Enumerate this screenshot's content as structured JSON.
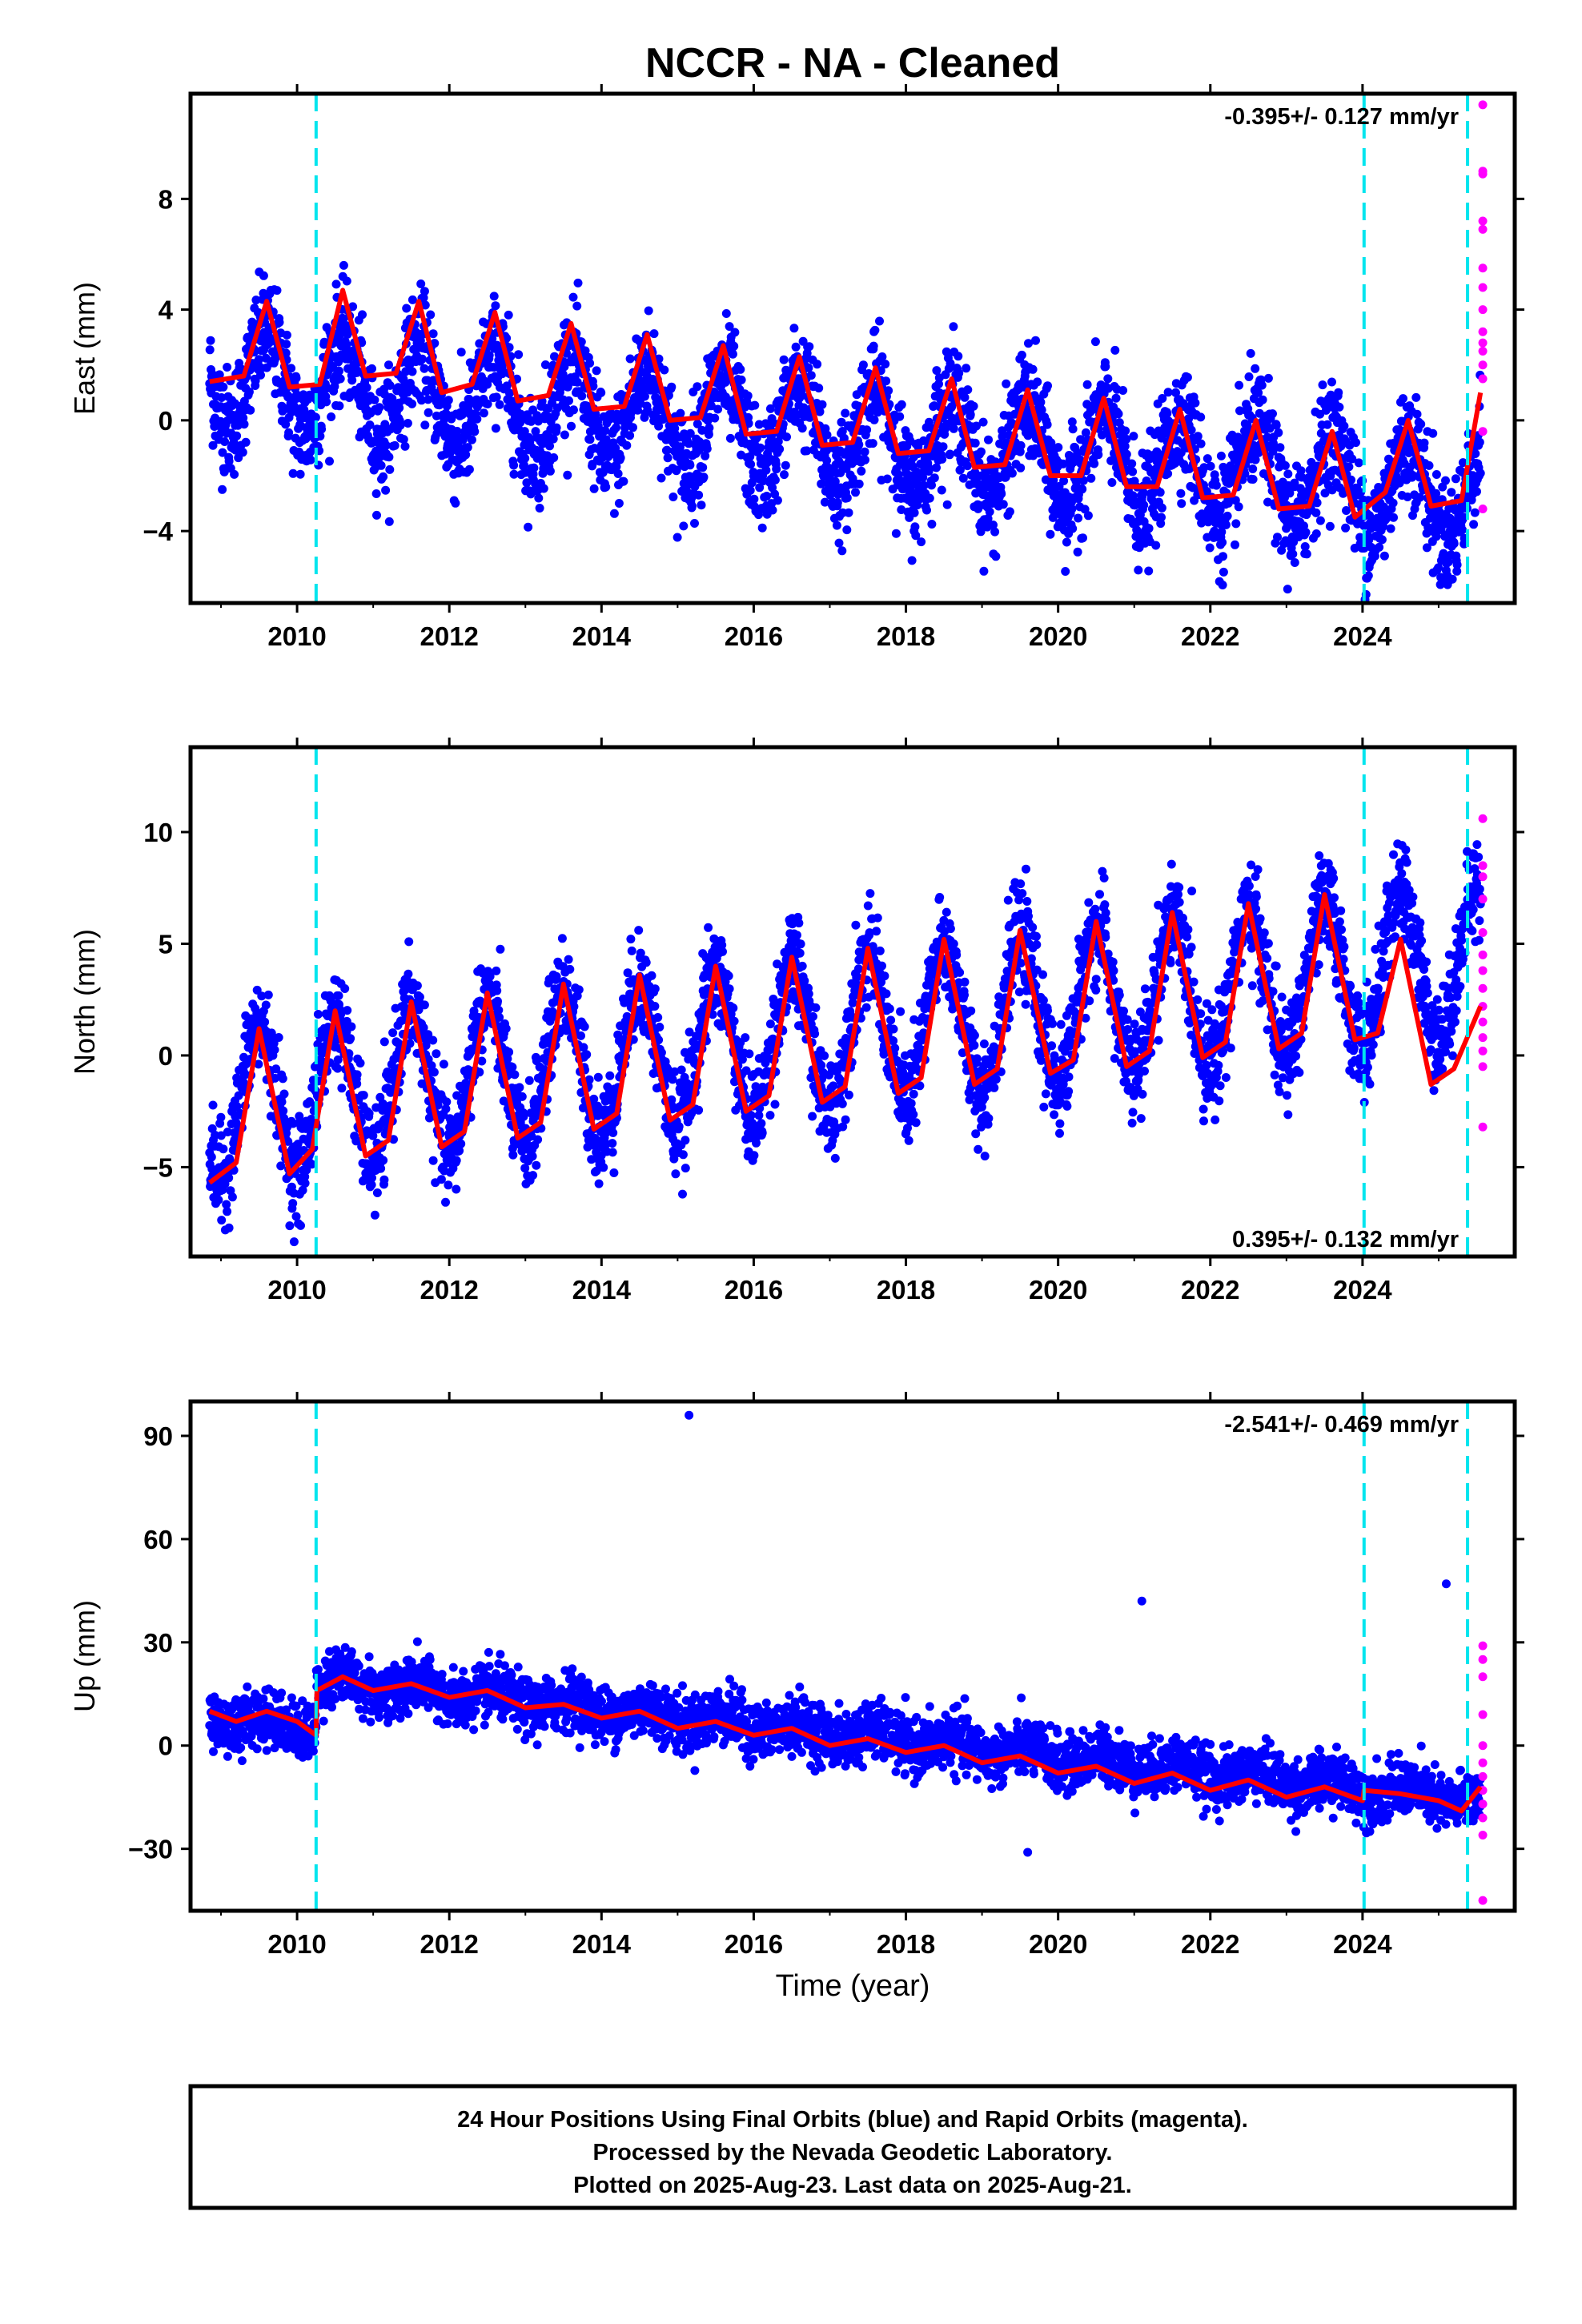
{
  "title": "NCCR  - NA - Cleaned",
  "xlabel": "Time (year)",
  "footer": {
    "line1": "24 Hour Positions Using Final Orbits (blue) and Rapid Orbits (magenta).",
    "line2": "Processed by the Nevada Geodetic Laboratory.",
    "line3": "Plotted on 2025-Aug-23. Last data on 2025-Aug-21."
  },
  "colors": {
    "final_orbits": "#0000ff",
    "rapid_orbits": "#ff00ff",
    "model": "#ff0000",
    "events": "#00e5ee"
  },
  "chart_data": [
    {
      "type": "scatter",
      "panel": "east",
      "ylabel": "East (mm)",
      "rate_label": "-0.395+/- 0.127 mm/yr",
      "rate_position": "top-right",
      "xlim": [
        2008.6,
        2026.0
      ],
      "ylim": [
        -6.6,
        11.8
      ],
      "xticks": [
        "2010",
        "2012",
        "2014",
        "2016",
        "2018",
        "2020",
        "2022",
        "2024"
      ],
      "yticks": [
        "−4",
        "0",
        "4",
        "8"
      ],
      "ytick_values": [
        -4,
        0,
        4,
        8
      ],
      "event_lines_x": [
        2010.25,
        2024.02,
        2025.38
      ],
      "series": [
        {
          "role": "final",
          "model": {
            "offset": 1.6,
            "trend": -0.26,
            "trend_ref": 2009.0,
            "amplitude": 1.7,
            "peak_phase": 0.6,
            "scatter": 1.0,
            "steps": []
          },
          "x_range": [
            2008.85,
            2025.55
          ]
        },
        {
          "role": "model_curve",
          "x": [
            2008.85,
            2009.3,
            2009.6,
            2009.9,
            2010.3,
            2010.6,
            2010.9,
            2011.3,
            2011.6,
            2011.9,
            2012.3,
            2012.6,
            2012.9,
            2013.3,
            2013.6,
            2013.9,
            2014.3,
            2014.6,
            2014.9,
            2015.3,
            2015.6,
            2015.9,
            2016.3,
            2016.6,
            2016.9,
            2017.3,
            2017.6,
            2017.9,
            2018.3,
            2018.6,
            2018.9,
            2019.3,
            2019.6,
            2019.9,
            2020.3,
            2020.6,
            2020.9,
            2021.3,
            2021.6,
            2021.9,
            2022.3,
            2022.6,
            2022.9,
            2023.3,
            2023.6,
            2023.9,
            2024.3,
            2024.6,
            2024.9,
            2025.3,
            2025.55
          ],
          "y": [
            1.4,
            1.6,
            4.3,
            1.2,
            1.3,
            4.7,
            1.6,
            1.7,
            4.3,
            1.0,
            1.3,
            3.9,
            0.7,
            0.9,
            3.5,
            0.4,
            0.5,
            3.1,
            0.0,
            0.1,
            2.7,
            -0.5,
            -0.4,
            2.3,
            -0.9,
            -0.8,
            1.9,
            -1.2,
            -1.1,
            1.5,
            -1.7,
            -1.6,
            1.1,
            -2.0,
            -2.0,
            0.8,
            -2.4,
            -2.4,
            0.4,
            -2.8,
            -2.7,
            0.0,
            -3.2,
            -3.1,
            -0.4,
            -3.5,
            -2.6,
            0.0,
            -3.1,
            -2.9,
            1.0
          ]
        },
        {
          "role": "rapid",
          "x": [
            2025.58,
            2025.58,
            2025.58,
            2025.58,
            2025.58,
            2025.58,
            2025.58,
            2025.58,
            2025.58,
            2025.58,
            2025.58,
            2025.58,
            2025.58,
            2025.58,
            2025.58
          ],
          "y": [
            11.4,
            9.0,
            8.9,
            7.2,
            6.9,
            5.5,
            4.8,
            4.0,
            3.2,
            2.8,
            2.5,
            2.0,
            1.5,
            -0.4,
            -3.2
          ]
        }
      ]
    },
    {
      "type": "scatter",
      "panel": "north",
      "ylabel": "North (mm)",
      "rate_label": "0.395+/- 0.132 mm/yr",
      "rate_position": "bottom-right",
      "xlim": [
        2008.6,
        2026.0
      ],
      "ylim": [
        -9.0,
        13.8
      ],
      "xticks": [
        "2010",
        "2012",
        "2014",
        "2016",
        "2018",
        "2020",
        "2022",
        "2024"
      ],
      "yticks": [
        "−5",
        "0",
        "5",
        "10"
      ],
      "ytick_values": [
        -5,
        0,
        5,
        10
      ],
      "event_lines_x": [
        2010.25,
        2024.02,
        2025.38
      ],
      "series": [
        {
          "role": "final",
          "model": {
            "offset": -2.2,
            "trend": 0.39,
            "trend_ref": 2009.0,
            "amplitude": 3.3,
            "peak_phase": 0.5,
            "scatter": 1.1,
            "steps": []
          },
          "x_range": [
            2008.85,
            2025.55
          ]
        },
        {
          "role": "model_curve",
          "x": [
            2008.85,
            2009.2,
            2009.5,
            2009.9,
            2010.2,
            2010.5,
            2010.9,
            2011.2,
            2011.5,
            2011.9,
            2012.2,
            2012.5,
            2012.9,
            2013.2,
            2013.5,
            2013.9,
            2014.2,
            2014.5,
            2014.9,
            2015.2,
            2015.5,
            2015.9,
            2016.2,
            2016.5,
            2016.9,
            2017.2,
            2017.5,
            2017.9,
            2018.2,
            2018.5,
            2018.9,
            2019.2,
            2019.5,
            2019.9,
            2020.2,
            2020.5,
            2020.9,
            2021.2,
            2021.5,
            2021.9,
            2022.2,
            2022.5,
            2022.9,
            2023.2,
            2023.5,
            2023.9,
            2024.2,
            2024.5,
            2024.9,
            2025.2,
            2025.55
          ],
          "y": [
            -5.7,
            -4.8,
            1.2,
            -5.3,
            -4.2,
            2.0,
            -4.5,
            -3.8,
            2.4,
            -4.1,
            -3.4,
            2.8,
            -3.7,
            -3.0,
            3.2,
            -3.3,
            -2.6,
            3.6,
            -2.9,
            -2.2,
            4.0,
            -2.5,
            -1.8,
            4.4,
            -2.1,
            -1.4,
            4.8,
            -1.7,
            -1.0,
            5.2,
            -1.3,
            -0.6,
            5.6,
            -0.8,
            -0.2,
            6.0,
            -0.5,
            0.2,
            6.4,
            -0.1,
            0.6,
            6.8,
            0.3,
            1.0,
            7.2,
            0.7,
            1.0,
            5.2,
            -1.3,
            -0.6,
            2.2
          ]
        },
        {
          "role": "rapid",
          "x": [
            2025.58,
            2025.58,
            2025.58,
            2025.58,
            2025.58,
            2025.58,
            2025.58,
            2025.58,
            2025.58,
            2025.58,
            2025.58,
            2025.58,
            2025.58,
            2025.58
          ],
          "y": [
            10.6,
            8.5,
            8.0,
            7.0,
            5.5,
            4.5,
            3.8,
            3.0,
            2.2,
            1.5,
            0.8,
            0.2,
            -0.5,
            -3.2
          ]
        }
      ]
    },
    {
      "type": "scatter",
      "panel": "up",
      "ylabel": "Up (mm)",
      "rate_label": "-2.541+/- 0.469 mm/yr",
      "rate_position": "top-right",
      "xlim": [
        2008.6,
        2026.0
      ],
      "ylim": [
        -48,
        100
      ],
      "xticks": [
        "2010",
        "2012",
        "2014",
        "2016",
        "2018",
        "2020",
        "2022",
        "2024"
      ],
      "yticks": [
        "−30",
        "0",
        "30",
        "60",
        "90"
      ],
      "ytick_values": [
        -30,
        0,
        30,
        60,
        90
      ],
      "event_lines_x": [
        2010.25,
        2024.02,
        2025.38
      ],
      "series": [
        {
          "role": "final",
          "model": {
            "offset": 8.0,
            "trend": -2.3,
            "trend_ref": 2009.0,
            "amplitude": 2.0,
            "peak_phase": 0.6,
            "scatter": 4.0,
            "steps": [
              {
                "x": 2010.25,
                "dy": 14.0
              }
            ]
          },
          "x_range": [
            2008.85,
            2025.55
          ]
        },
        {
          "role": "outliers",
          "x": [
            2015.15,
            2021.1,
            2019.6,
            2025.1
          ],
          "y": [
            96,
            42,
            -31,
            47
          ]
        },
        {
          "role": "model_curve",
          "x": [
            2008.85,
            2009.2,
            2009.6,
            2010.0,
            2010.25,
            2010.26,
            2010.6,
            2011.0,
            2011.5,
            2012.0,
            2012.5,
            2013.0,
            2013.5,
            2014.0,
            2014.5,
            2015.0,
            2015.5,
            2016.0,
            2016.5,
            2017.0,
            2017.5,
            2018.0,
            2018.5,
            2019.0,
            2019.5,
            2020.0,
            2020.5,
            2021.0,
            2021.5,
            2022.0,
            2022.5,
            2023.0,
            2023.5,
            2024.0,
            2024.02,
            2024.5,
            2025.0,
            2025.3,
            2025.55
          ],
          "y": [
            10,
            7,
            10,
            7,
            3,
            16,
            20,
            16,
            18,
            14,
            16,
            11,
            12,
            8,
            10,
            5,
            7,
            3,
            5,
            0,
            2,
            -2,
            0,
            -5,
            -3,
            -8,
            -6,
            -11,
            -8,
            -13,
            -10,
            -15,
            -12,
            -16,
            -13,
            -14,
            -16,
            -19,
            -12
          ]
        },
        {
          "role": "rapid",
          "x": [
            2025.58,
            2025.58,
            2025.58,
            2025.58,
            2025.58,
            2025.58,
            2025.58,
            2025.58,
            2025.58,
            2025.58,
            2025.58,
            2025.58
          ],
          "y": [
            29,
            25,
            20,
            9,
            0,
            -5,
            -9,
            -13,
            -17,
            -21,
            -26,
            -45
          ]
        }
      ]
    }
  ]
}
